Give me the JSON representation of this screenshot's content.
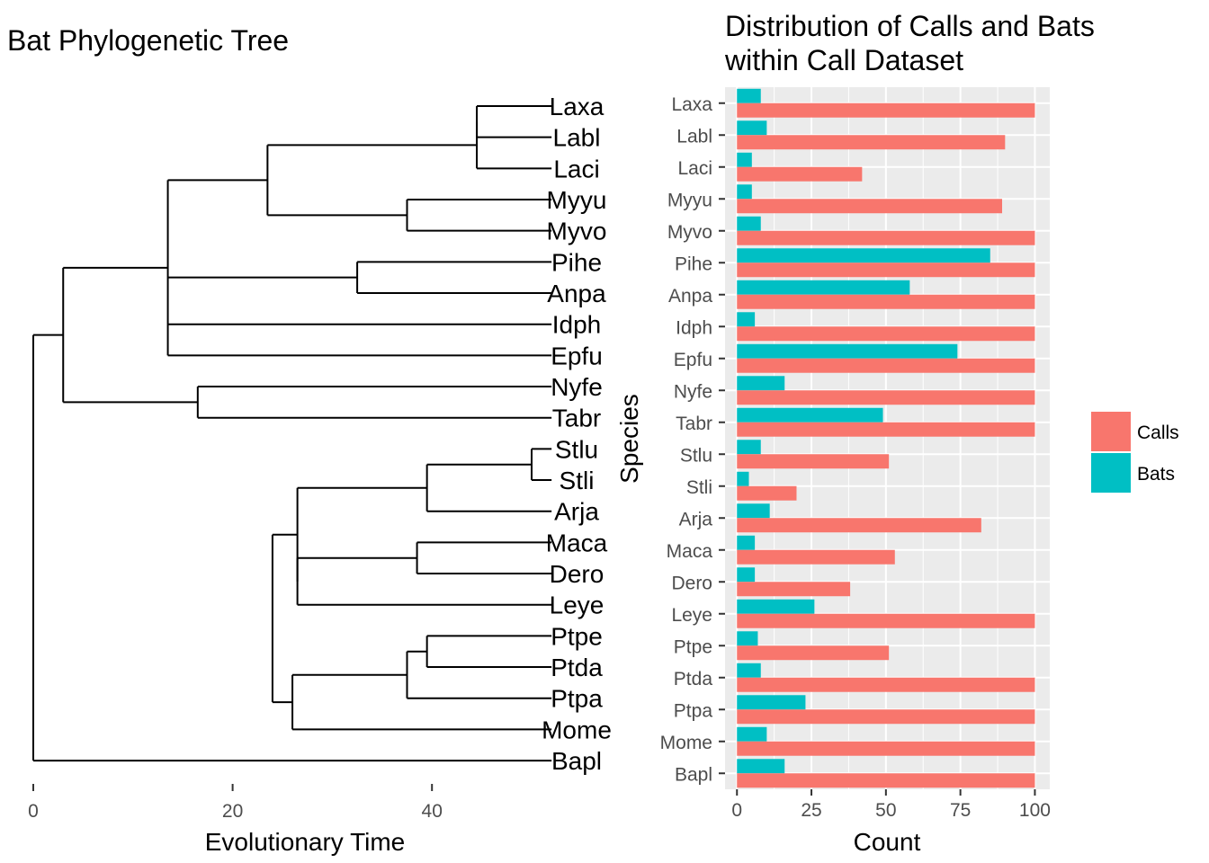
{
  "chart_data": [
    {
      "type": "dendrogram",
      "title": "Bat Phylogenetic Tree",
      "xlabel": "Evolutionary Time",
      "ylabel": "",
      "xlim": [
        0,
        52
      ],
      "xticks": [
        0,
        20,
        40
      ],
      "grid": false,
      "tips": [
        "Laxa",
        "Labl",
        "Laci",
        "Myyu",
        "Myvo",
        "Pihe",
        "Anpa",
        "Idph",
        "Epfu",
        "Nyfe",
        "Tabr",
        "Stlu",
        "Stli",
        "Arja",
        "Maca",
        "Dero",
        "Leye",
        "Ptpe",
        "Ptda",
        "Ptpa",
        "Mome",
        "Bapl"
      ],
      "nodes": {
        "root": {
          "t": 0.0,
          "children": [
            "n_yang",
            "Bapl"
          ]
        },
        "n_yang": {
          "t": 3.0,
          "children": [
            "n_vesp",
            "n_molo"
          ]
        },
        "n_vesp": {
          "t": 13.5,
          "children": [
            "n_myot",
            "n_pian",
            "Idph",
            "Epfu"
          ]
        },
        "n_myot": {
          "t": 23.5,
          "children": [
            "n_las",
            "n_myo"
          ]
        },
        "n_las": {
          "t": 44.5,
          "children": [
            "n_laxb",
            "Laci"
          ]
        },
        "n_laxb": {
          "t": 44.5,
          "children": [
            "Laxa",
            "Labl"
          ]
        },
        "n_myo": {
          "t": 37.5,
          "children": [
            "Myyu",
            "Myvo"
          ]
        },
        "n_pian": {
          "t": 32.5,
          "children": [
            "Pihe",
            "Anpa"
          ]
        },
        "n_molo": {
          "t": 16.5,
          "children": [
            "Nyfe",
            "Tabr"
          ]
        },
        "n_yango": {
          "t": 24.0,
          "children": [
            "n_phyl",
            "n_mormo"
          ]
        },
        "n_phyl": {
          "t": 26.5,
          "children": [
            "n_stu",
            "n_madl"
          ]
        },
        "n_stu": {
          "t": 39.5,
          "children": [
            "n_stl",
            "Arja"
          ]
        },
        "n_stl": {
          "t": 50.0,
          "children": [
            "Stlu",
            "Stli"
          ]
        },
        "n_madl": {
          "t": 26.5,
          "children": [
            "n_md",
            "Leye"
          ]
        },
        "n_md": {
          "t": 38.5,
          "children": [
            "Maca",
            "Dero"
          ]
        },
        "n_mormo": {
          "t": 26.0,
          "children": [
            "n_pt",
            "Mome"
          ]
        },
        "n_pt": {
          "t": 37.5,
          "children": [
            "n_pt2",
            "Ptpa"
          ]
        },
        "n_pt2": {
          "t": 39.5,
          "children": [
            "Ptpe",
            "Ptda"
          ]
        }
      },
      "tip_time": 52
    },
    {
      "type": "bar",
      "orientation": "horizontal",
      "title": "Distribution of Calls and Bats within Call Dataset",
      "title_lines": [
        "Distribution of Calls and Bats",
        "within Call Dataset"
      ],
      "xlabel": "Count",
      "ylabel": "Species",
      "xlim": [
        -4,
        105
      ],
      "xticks": [
        0,
        25,
        50,
        75,
        100
      ],
      "grid": true,
      "legend_position": "right",
      "categories": [
        "Laxa",
        "Labl",
        "Laci",
        "Myyu",
        "Myvo",
        "Pihe",
        "Anpa",
        "Idph",
        "Epfu",
        "Nyfe",
        "Tabr",
        "Stlu",
        "Stli",
        "Arja",
        "Maca",
        "Dero",
        "Leye",
        "Ptpe",
        "Ptda",
        "Ptpa",
        "Mome",
        "Bapl"
      ],
      "series": [
        {
          "name": "Calls",
          "color": "#F8766D",
          "values": [
            100,
            90,
            42,
            89,
            100,
            100,
            100,
            100,
            100,
            100,
            100,
            51,
            20,
            82,
            53,
            38,
            100,
            51,
            100,
            100,
            100,
            100
          ]
        },
        {
          "name": "Bats",
          "color": "#00BFC4",
          "values": [
            8,
            10,
            5,
            5,
            8,
            85,
            58,
            6,
            74,
            16,
            49,
            8,
            4,
            11,
            6,
            6,
            26,
            7,
            8,
            23,
            10,
            16
          ]
        }
      ]
    }
  ],
  "colors": {
    "panel_background": "#EBEBEB",
    "grid_major": "#FFFFFF",
    "tree_line": "#000000",
    "tick_text": "#4D4D4D"
  }
}
